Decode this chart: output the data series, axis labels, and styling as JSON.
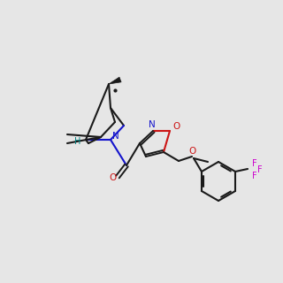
{
  "background_color": "#e6e6e6",
  "bond_color": "#1a1a1a",
  "N_color": "#1414cc",
  "O_color": "#cc1414",
  "F_color": "#cc00cc",
  "H_color": "#008080"
}
